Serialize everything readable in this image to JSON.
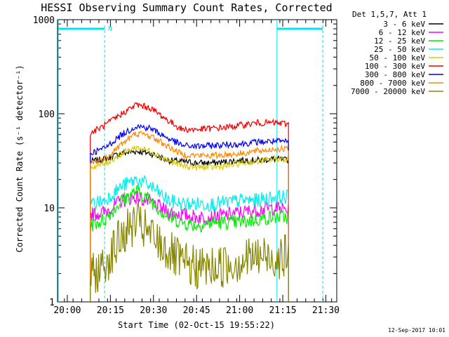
{
  "chart_data": {
    "type": "line",
    "title": "HESSI Observing Summary Count Rates, Corrected",
    "xlabel": "Start Time (02-Oct-15 19:55:22)",
    "ylabel": "Corrected Count Rate (s⁻¹ detector⁻¹)",
    "yscale": "log",
    "ylim": [
      1,
      1000
    ],
    "xlim_minutes": [
      19.6,
      33.8
    ],
    "x_ticks": [
      {
        "label": "20:00",
        "minute": 20.0
      },
      {
        "label": "20:15",
        "minute": 20.25
      },
      {
        "label": "20:30",
        "minute": 20.5
      },
      {
        "label": "20:45",
        "minute": 20.75
      },
      {
        "label": "21:00",
        "minute": 21.0
      },
      {
        "label": "21:15",
        "minute": 21.25
      },
      {
        "label": "21:30",
        "minute": 21.5
      }
    ],
    "y_ticks": [
      {
        "label": "1",
        "value": 1
      },
      {
        "label": "10",
        "value": 10
      },
      {
        "label": "100",
        "value": 100
      },
      {
        "label": "1000",
        "value": 1000
      }
    ],
    "legend_title": "Det 1,5,7, Att 1",
    "legend_position": "outside-right",
    "footer_date": "12-Sep-2017 10:01",
    "night_marker": "N",
    "data_start": "20:08",
    "data_end": "21:17",
    "series": [
      {
        "name": "3 - 6 keV",
        "color": "#000000",
        "values": [
          31,
          33,
          38,
          40,
          38,
          32,
          31,
          30,
          30,
          31,
          32,
          32,
          33,
          32
        ]
      },
      {
        "name": "6 - 12 keV",
        "color": "#ff00ff",
        "values": [
          8.5,
          9,
          12,
          13,
          11.5,
          9,
          8.5,
          8,
          8,
          8.5,
          9,
          9.5,
          10,
          9.5
        ]
      },
      {
        "name": "12 - 25 keV",
        "color": "#00ee00",
        "values": [
          6.5,
          7.5,
          12,
          15,
          12,
          8,
          7,
          6.5,
          7,
          7,
          7,
          7.5,
          8,
          8
        ]
      },
      {
        "name": "25 - 50 keV",
        "color": "#00eeee",
        "values": [
          11,
          12,
          17,
          20,
          17,
          12,
          11,
          11,
          11,
          11.5,
          12,
          12,
          13,
          13
        ]
      },
      {
        "name": "50 - 100 keV",
        "color": "#ddcc00",
        "values": [
          27,
          29,
          38,
          44,
          40,
          32,
          28,
          27,
          27,
          28,
          30,
          31,
          33,
          33
        ]
      },
      {
        "name": "100 - 300 keV",
        "color": "#ee0000",
        "values": [
          62,
          75,
          100,
          125,
          115,
          85,
          68,
          68,
          70,
          72,
          76,
          80,
          80,
          78
        ]
      },
      {
        "name": "300 - 800 keV",
        "color": "#0000ee",
        "values": [
          38,
          43,
          60,
          74,
          70,
          55,
          46,
          45,
          46,
          47,
          48,
          50,
          51,
          50
        ]
      },
      {
        "name": "800 - 7000 keV",
        "color": "#ff8800",
        "values": [
          30,
          33,
          48,
          62,
          58,
          45,
          37,
          36,
          36,
          37,
          38,
          40,
          42,
          42
        ]
      },
      {
        "name": "7000 - 20000 keV",
        "color": "#888800",
        "values": [
          1.8,
          2.5,
          5,
          7,
          5,
          3.5,
          2.5,
          2.3,
          2.3,
          2.5,
          2.8,
          3,
          3,
          3
        ]
      }
    ],
    "sample_times": [
      "20:08",
      "20:13",
      "20:19",
      "20:24",
      "20:29",
      "20:35",
      "20:40",
      "20:45",
      "20:51",
      "20:56",
      "21:01",
      "21:06",
      "21:12",
      "21:17"
    ]
  }
}
